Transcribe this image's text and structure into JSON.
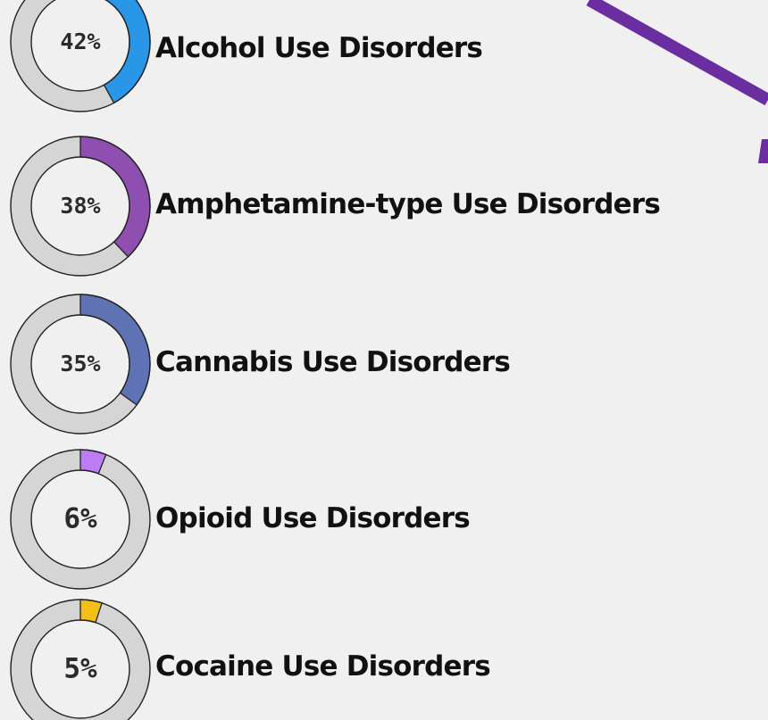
{
  "chart_data": {
    "type": "donut",
    "items": [
      {
        "label": "Alcohol Use Disorders",
        "value": 42,
        "display": "42%",
        "color": "#2a96e8"
      },
      {
        "label": "Amphetamine-type Use Disorders",
        "value": 38,
        "display": "38%",
        "color": "#8e4fb0"
      },
      {
        "label": "Cannabis Use Disorders",
        "value": 35,
        "display": "35%",
        "color": "#5f72b4"
      },
      {
        "label": "Opioid Use Disorders",
        "value": 6,
        "display": "6%",
        "color": "#bb7cf4"
      },
      {
        "label": "Cocaine Use Disorders",
        "value": 5,
        "display": "5%",
        "color": "#f2bf16"
      }
    ],
    "track_color": "#d5d5d5",
    "outline_color": "#222222",
    "decoration_color": "#6a2ea0"
  }
}
